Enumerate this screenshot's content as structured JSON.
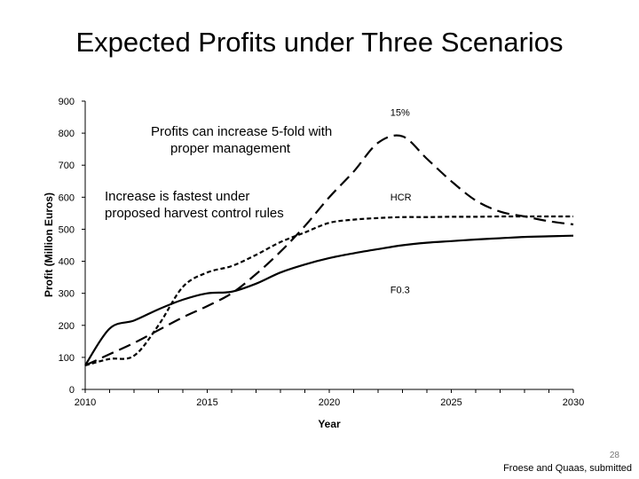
{
  "slide": {
    "title": "Expected Profits under Three Scenarios",
    "annotation_1": [
      "Profits can increase 5-fold with",
      "proper management"
    ],
    "annotation_2": [
      "Increase is fastest under",
      "proposed harvest control rules"
    ],
    "page_number": "28",
    "citation": "Froese and Quaas, submitted"
  },
  "chart_data": {
    "type": "line",
    "title": "",
    "xlabel": "Year",
    "ylabel": "Profit (Million Euros)",
    "xlim": [
      2010,
      2030
    ],
    "ylim": [
      0,
      900
    ],
    "xticks": [
      "2010",
      "2015",
      "2020",
      "2025",
      "2030"
    ],
    "yticks": [
      "0",
      "100",
      "200",
      "300",
      "400",
      "500",
      "600",
      "700",
      "800",
      "900"
    ],
    "grid": false,
    "x": [
      2010,
      2011,
      2012,
      2013,
      2014,
      2015,
      2016,
      2017,
      2018,
      2019,
      2020,
      2021,
      2022,
      2023,
      2024,
      2025,
      2026,
      2027,
      2028,
      2029,
      2030
    ],
    "series": [
      {
        "name": "F0.3",
        "style": "solid",
        "values": [
          75,
          190,
          215,
          250,
          280,
          300,
          305,
          330,
          365,
          390,
          410,
          425,
          438,
          450,
          458,
          463,
          468,
          472,
          476,
          478,
          480
        ]
      },
      {
        "name": "HCR",
        "style": "short-dash",
        "values": [
          75,
          95,
          105,
          200,
          320,
          365,
          385,
          420,
          460,
          490,
          520,
          530,
          535,
          538,
          538,
          539,
          539,
          540,
          540,
          540,
          540
        ]
      },
      {
        "name": "15%",
        "style": "long-dash",
        "values": [
          75,
          110,
          145,
          185,
          225,
          260,
          300,
          360,
          430,
          510,
          600,
          680,
          770,
          790,
          720,
          650,
          590,
          555,
          540,
          525,
          515
        ]
      }
    ],
    "colors": {
      "lines": "#000000",
      "axes": "#000000"
    }
  }
}
